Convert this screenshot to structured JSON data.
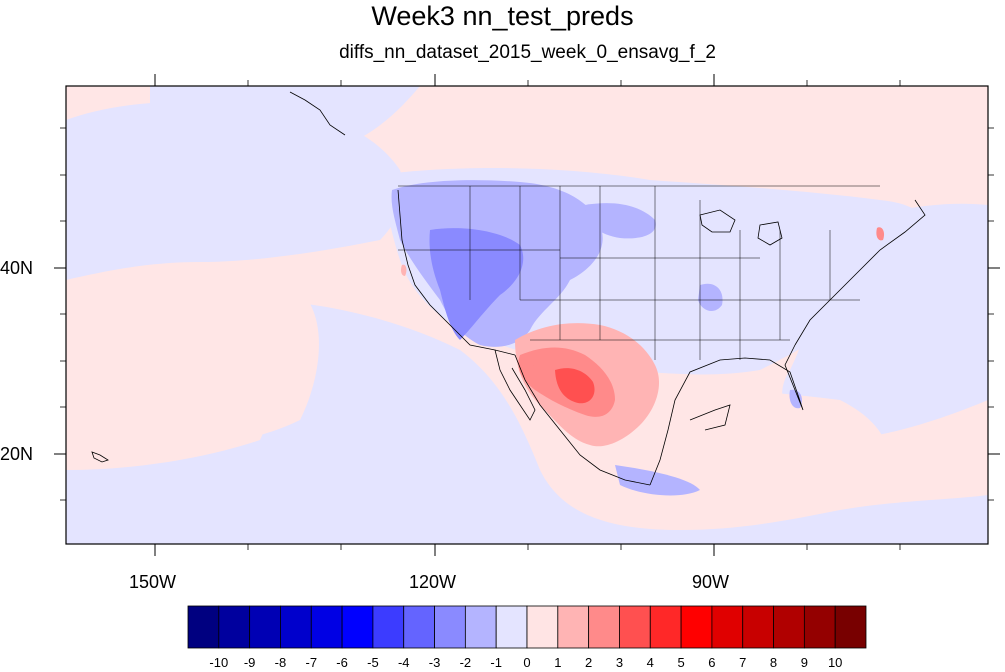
{
  "map": {
    "title": "Week3 nn_test_preds",
    "subtitle": "diffs_nn_dataset_2015_week_0_ensavg_f_2",
    "lon_labels": [
      "150W",
      "120W",
      "90W"
    ],
    "lat_labels": [
      "40N",
      "20N"
    ],
    "projection": "cylindrical equidistant",
    "extent": {
      "lon": [
        -160,
        -60
      ],
      "lat": [
        10,
        58
      ]
    },
    "field": "difference of weekly predictions (nn_test_preds minus reference)",
    "pattern_notes": {
      "background": "weak positive over most ocean, weak negative over Pacific and central US",
      "negative_max": "-3 to -4 over interior West (Idaho, Utah, Nevada, Arizona)",
      "positive_max": "4 to 5 over northern Mexico and west Texas"
    }
  },
  "colorbar": {
    "labels": [
      "-10",
      "-9",
      "-8",
      "-7",
      "-6",
      "-5",
      "-4",
      "-3",
      "-2",
      "-1",
      "0",
      "1",
      "2",
      "3",
      "4",
      "5",
      "6",
      "7",
      "8",
      "9",
      "10"
    ],
    "colors": [
      "#000080",
      "#00009e",
      "#0000b4",
      "#0000cc",
      "#0000e4",
      "#0000ff",
      "#3c3cff",
      "#6464ff",
      "#8a8aff",
      "#b4b4ff",
      "#e4e4ff",
      "#ffe4e4",
      "#ffb4b4",
      "#ff8a8a",
      "#ff5050",
      "#ff2828",
      "#ff0000",
      "#e00000",
      "#c80000",
      "#b00000",
      "#940000",
      "#780000"
    ]
  }
}
